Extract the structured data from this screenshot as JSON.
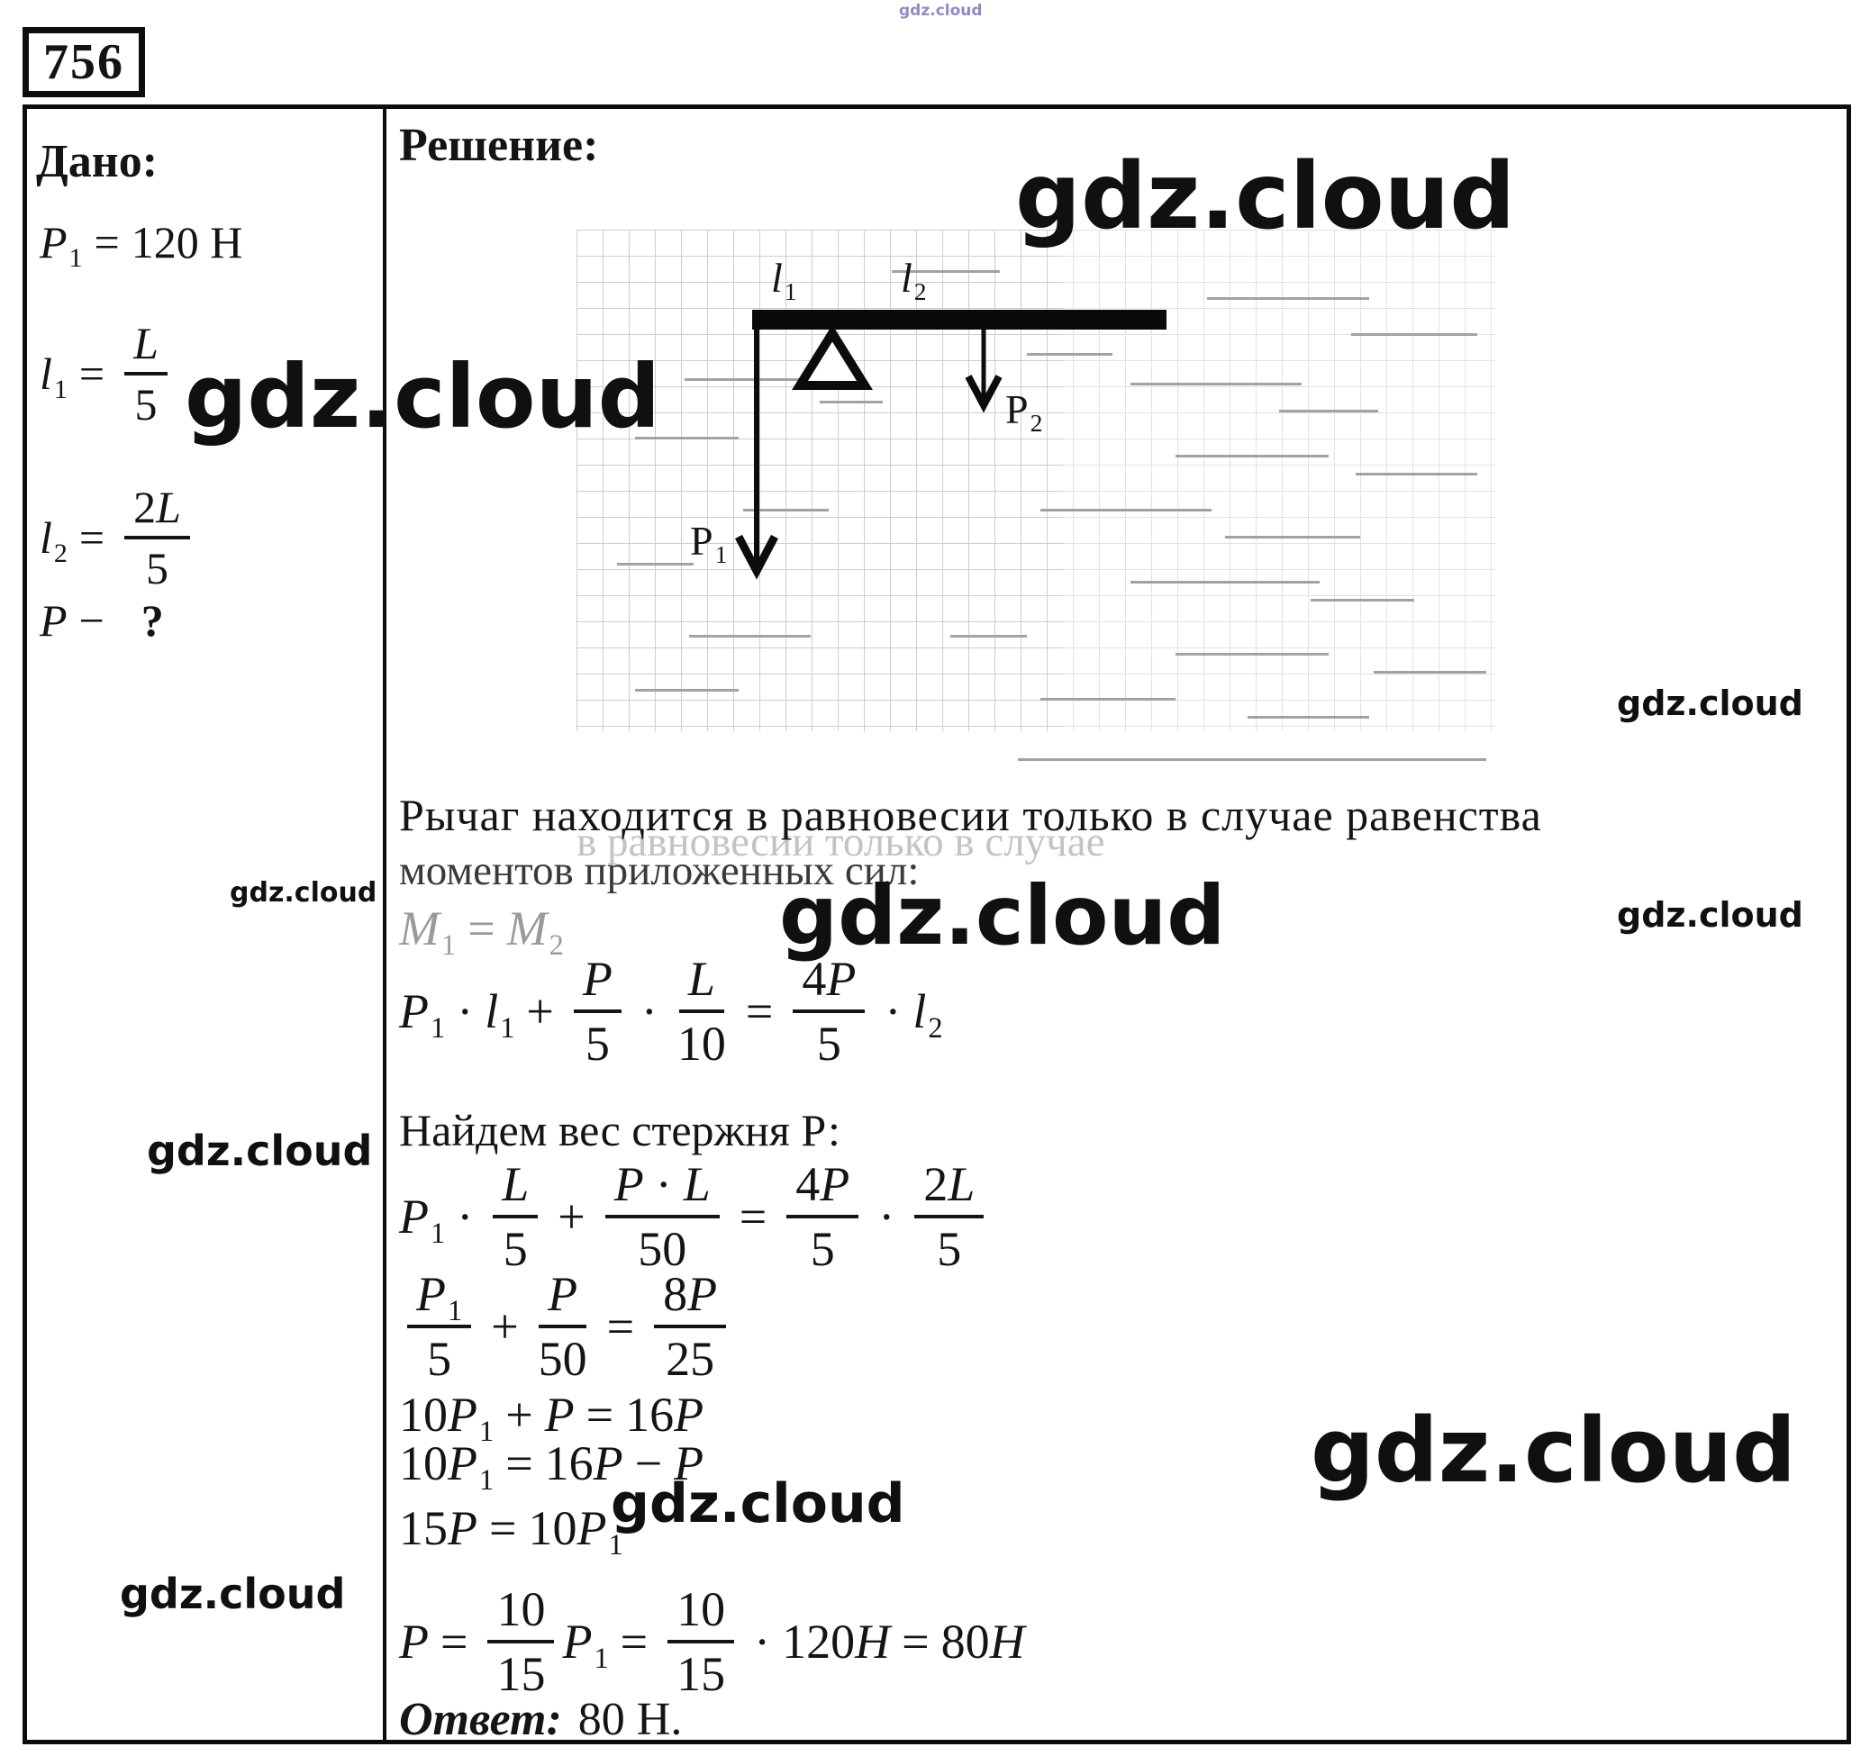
{
  "watermark_text": "gdz.cloud",
  "problem_number": "756",
  "given": {
    "title": "Дано:",
    "items": {
      "g1": [
        {
          "t": "v",
          "v": "P",
          "sub": "1"
        },
        {
          "t": "o",
          "v": "="
        },
        {
          "t": "n",
          "v": "120 Н"
        }
      ],
      "g2": [
        {
          "t": "v",
          "v": "l",
          "sub": "1"
        },
        {
          "t": "o",
          "v": "="
        },
        {
          "t": "f",
          "num": [
            {
              "t": "v",
              "v": "L"
            }
          ],
          "den": [
            {
              "t": "n",
              "v": "5"
            }
          ]
        }
      ],
      "g3": [
        {
          "t": "v",
          "v": "l",
          "sub": "2"
        },
        {
          "t": "o",
          "v": "="
        },
        {
          "t": "f",
          "num": [
            {
              "t": "n",
              "v": "2"
            },
            {
              "t": "v",
              "v": "L"
            }
          ],
          "den": [
            {
              "t": "n",
              "v": "5"
            }
          ]
        }
      ],
      "g4": [
        {
          "t": "v",
          "v": "P"
        },
        {
          "t": "o",
          "v": "−"
        },
        {
          "t": "b",
          "v": "?"
        }
      ]
    }
  },
  "solution": {
    "title": "Решение:",
    "line1": "Рычаг находится в равновесии только в случае равенства",
    "ghost": "в равновесии только в случае",
    "line2": "моментов приложенных сил:",
    "find_line": "Найдем вес стержня Р:",
    "answer_label": "Ответ:",
    "answer_value": "80 Н.",
    "diagram": {
      "l1": [
        {
          "t": "v",
          "v": "l",
          "sub": "1"
        }
      ],
      "l2": [
        {
          "t": "v",
          "v": "l",
          "sub": "2"
        }
      ],
      "p1": [
        {
          "t": "n",
          "v": "P",
          "sub": "1"
        }
      ],
      "p2": [
        {
          "t": "n",
          "v": "P",
          "sub": "2"
        }
      ]
    },
    "formulas": {
      "m": [
        {
          "t": "v",
          "v": "M",
          "sub": "1"
        },
        {
          "t": "o",
          "v": "="
        },
        {
          "t": "v",
          "v": "M",
          "sub": "2"
        }
      ],
      "f1": [
        {
          "t": "v",
          "v": "P",
          "sub": "1"
        },
        {
          "t": "o",
          "v": "·"
        },
        {
          "t": "v",
          "v": "l",
          "sub": "1"
        },
        {
          "t": "o",
          "v": "+"
        },
        {
          "t": "f",
          "num": [
            {
              "t": "v",
              "v": "P"
            }
          ],
          "den": [
            {
              "t": "n",
              "v": "5"
            }
          ]
        },
        {
          "t": "o",
          "v": "·"
        },
        {
          "t": "f",
          "num": [
            {
              "t": "v",
              "v": "L"
            }
          ],
          "den": [
            {
              "t": "n",
              "v": "10"
            }
          ]
        },
        {
          "t": "o",
          "v": "="
        },
        {
          "t": "f",
          "num": [
            {
              "t": "n",
              "v": "4"
            },
            {
              "t": "v",
              "v": "P"
            }
          ],
          "den": [
            {
              "t": "n",
              "v": "5"
            }
          ]
        },
        {
          "t": "o",
          "v": "·"
        },
        {
          "t": "v",
          "v": "l",
          "sub": "2"
        }
      ],
      "f2": [
        {
          "t": "v",
          "v": "P",
          "sub": "1"
        },
        {
          "t": "o",
          "v": "·"
        },
        {
          "t": "f",
          "num": [
            {
              "t": "v",
              "v": "L"
            }
          ],
          "den": [
            {
              "t": "n",
              "v": "5"
            }
          ]
        },
        {
          "t": "o",
          "v": "+"
        },
        {
          "t": "f",
          "num": [
            {
              "t": "v",
              "v": "P"
            },
            {
              "t": "o",
              "v": "·"
            },
            {
              "t": "v",
              "v": "L"
            }
          ],
          "den": [
            {
              "t": "n",
              "v": "50"
            }
          ]
        },
        {
          "t": "o",
          "v": "="
        },
        {
          "t": "f",
          "num": [
            {
              "t": "n",
              "v": "4"
            },
            {
              "t": "v",
              "v": "P"
            }
          ],
          "den": [
            {
              "t": "n",
              "v": "5"
            }
          ]
        },
        {
          "t": "o",
          "v": "·"
        },
        {
          "t": "f",
          "num": [
            {
              "t": "n",
              "v": "2"
            },
            {
              "t": "v",
              "v": "L"
            }
          ],
          "den": [
            {
              "t": "n",
              "v": "5"
            }
          ]
        }
      ],
      "f3": [
        {
          "t": "f",
          "num": [
            {
              "t": "v",
              "v": "P",
              "sub": "1"
            }
          ],
          "den": [
            {
              "t": "n",
              "v": "5"
            }
          ]
        },
        {
          "t": "o",
          "v": "+"
        },
        {
          "t": "f",
          "num": [
            {
              "t": "v",
              "v": "P"
            }
          ],
          "den": [
            {
              "t": "n",
              "v": "50"
            }
          ]
        },
        {
          "t": "o",
          "v": "="
        },
        {
          "t": "f",
          "num": [
            {
              "t": "n",
              "v": "8"
            },
            {
              "t": "v",
              "v": "P"
            }
          ],
          "den": [
            {
              "t": "n",
              "v": "25"
            }
          ]
        }
      ],
      "f4": [
        {
          "t": "n",
          "v": "10"
        },
        {
          "t": "v",
          "v": "P",
          "sub": "1"
        },
        {
          "t": "o",
          "v": "+"
        },
        {
          "t": "v",
          "v": "P"
        },
        {
          "t": "o",
          "v": "="
        },
        {
          "t": "n",
          "v": "16"
        },
        {
          "t": "v",
          "v": "P"
        }
      ],
      "f5": [
        {
          "t": "n",
          "v": "10"
        },
        {
          "t": "v",
          "v": "P",
          "sub": "1"
        },
        {
          "t": "o",
          "v": "="
        },
        {
          "t": "n",
          "v": "16"
        },
        {
          "t": "v",
          "v": "P"
        },
        {
          "t": "o",
          "v": "−"
        },
        {
          "t": "v",
          "v": "P"
        }
      ],
      "f6": [
        {
          "t": "n",
          "v": "15"
        },
        {
          "t": "v",
          "v": "P"
        },
        {
          "t": "o",
          "v": "="
        },
        {
          "t": "n",
          "v": "10"
        },
        {
          "t": "v",
          "v": "P",
          "sub": "1"
        }
      ],
      "f7": [
        {
          "t": "v",
          "v": "P"
        },
        {
          "t": "o",
          "v": "="
        },
        {
          "t": "f",
          "num": [
            {
              "t": "n",
              "v": "10"
            }
          ],
          "den": [
            {
              "t": "n",
              "v": "15"
            }
          ]
        },
        {
          "t": "v",
          "v": "P",
          "sub": "1"
        },
        {
          "t": "o",
          "v": "="
        },
        {
          "t": "f",
          "num": [
            {
              "t": "n",
              "v": "10"
            }
          ],
          "den": [
            {
              "t": "n",
              "v": "15"
            }
          ]
        },
        {
          "t": "o",
          "v": "·"
        },
        {
          "t": "n",
          "v": "120"
        },
        {
          "t": "v",
          "v": "Н"
        },
        {
          "t": "o",
          "v": "="
        },
        {
          "t": "n",
          "v": "80"
        },
        {
          "t": "v",
          "v": "Н"
        }
      ]
    }
  }
}
